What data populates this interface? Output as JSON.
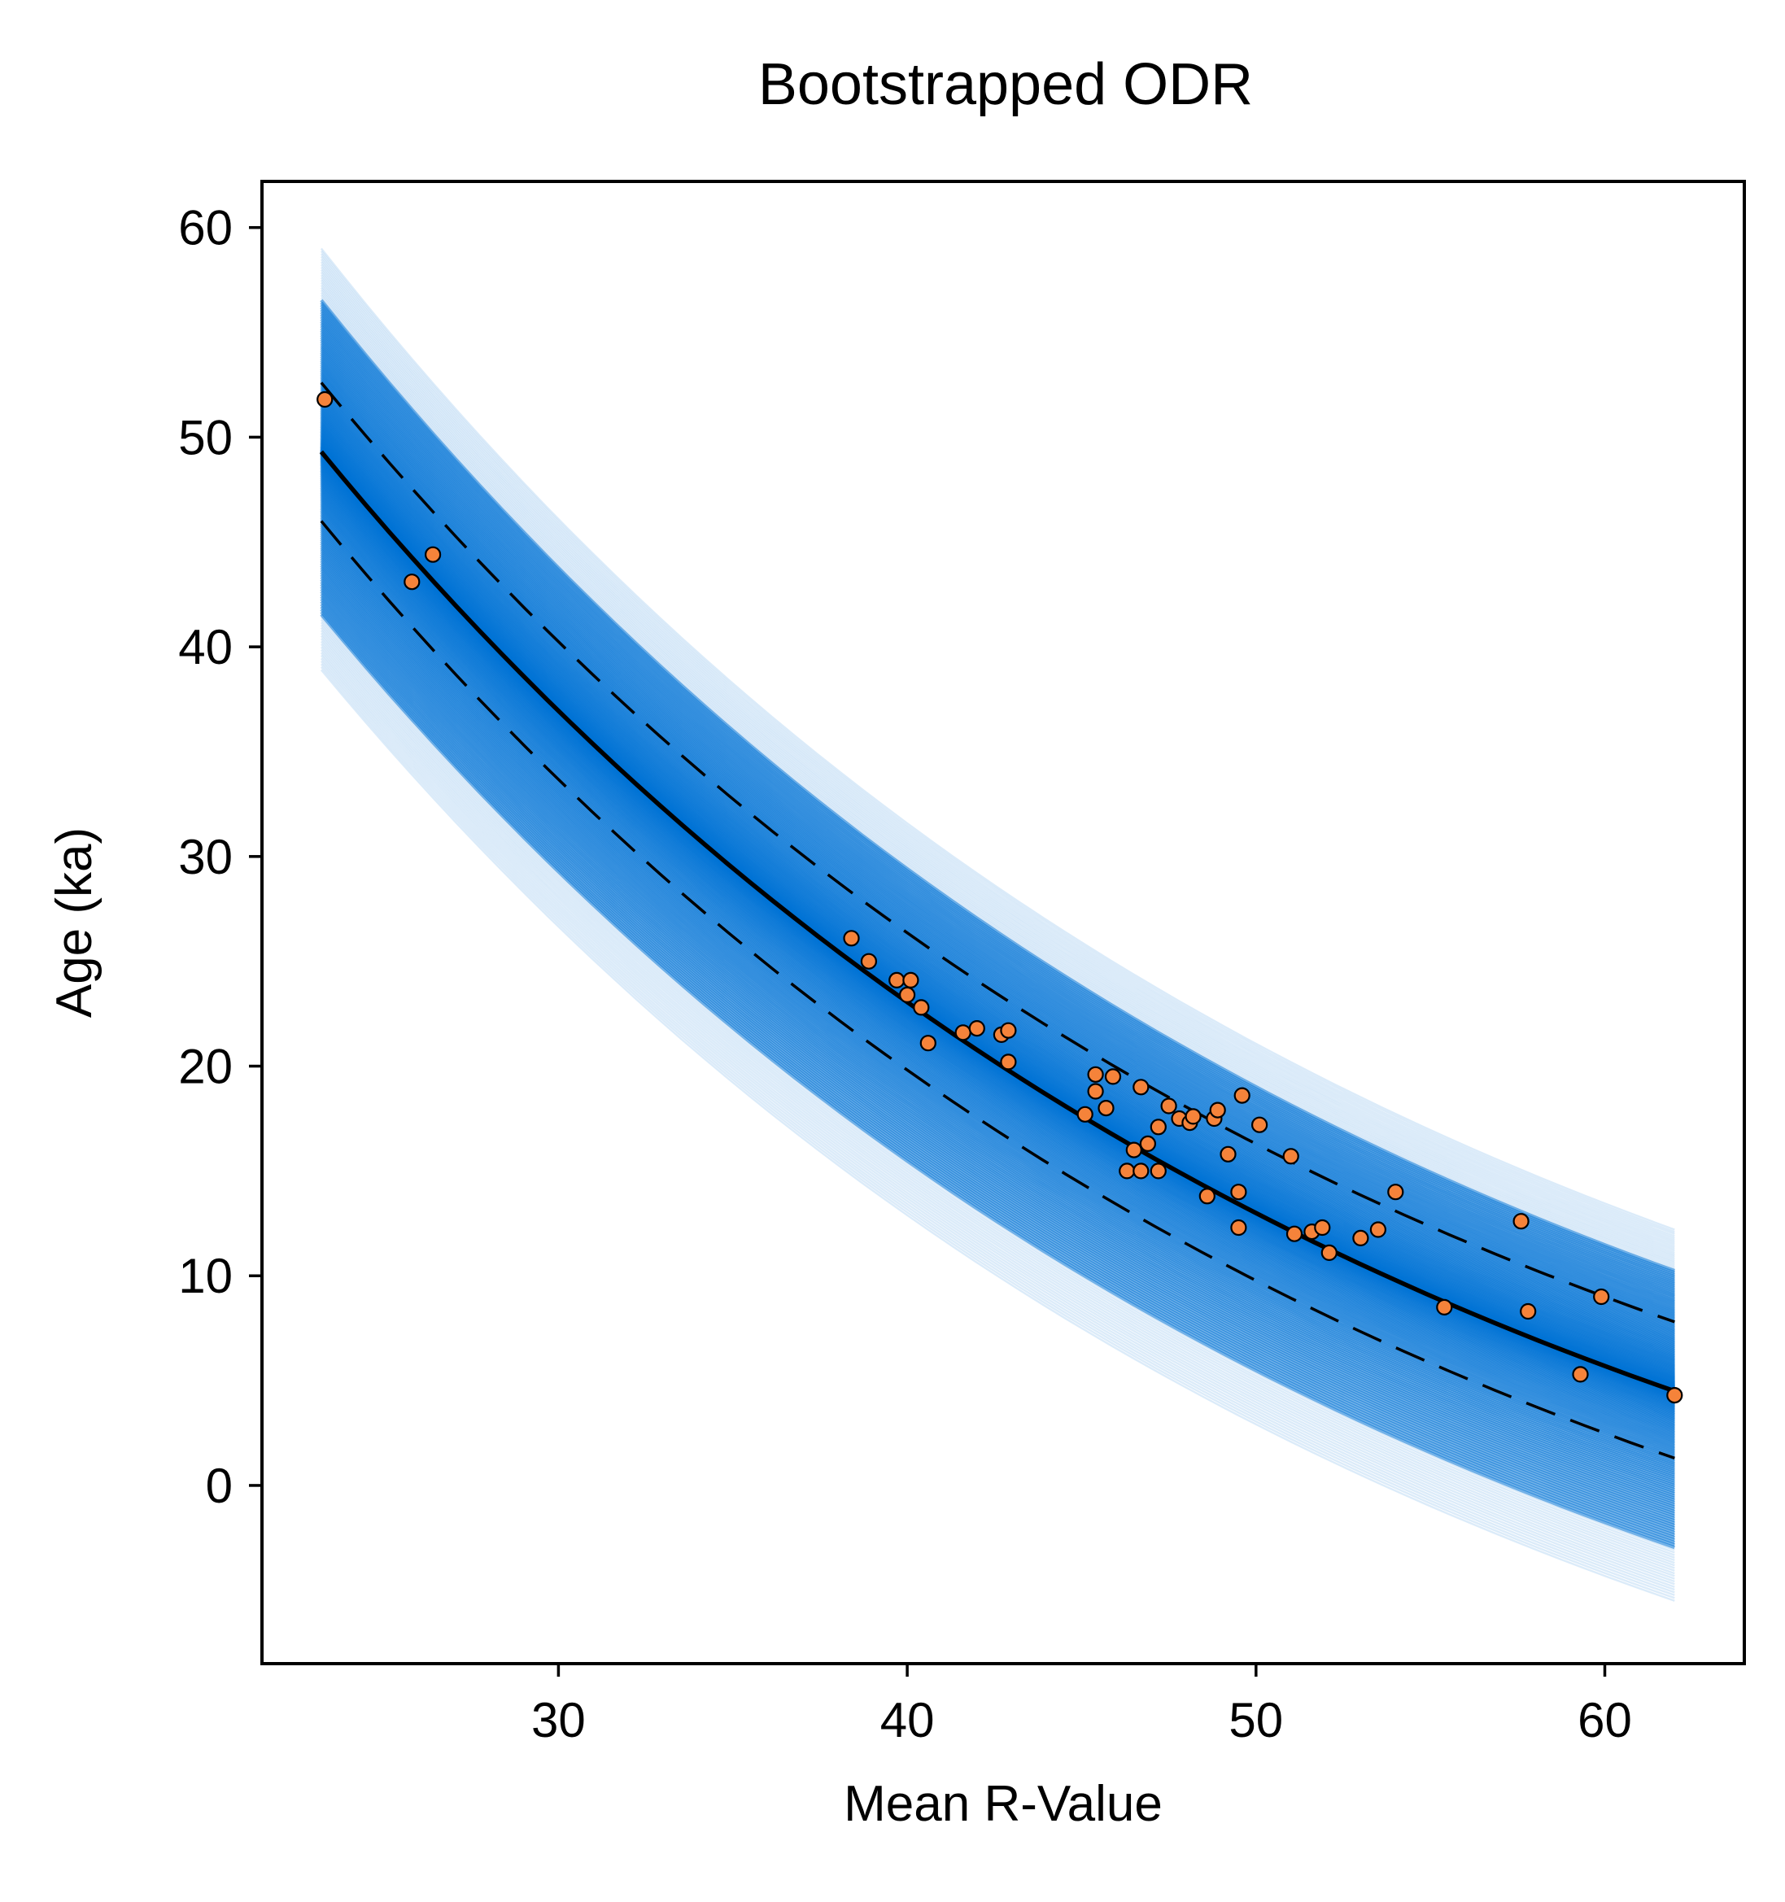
{
  "chart_data": {
    "type": "scatter",
    "title": "Bootstrapped ODR",
    "xlabel": "Mean R-Value",
    "ylabel": "Age (ka)",
    "xlim": [
      21.5,
      64
    ],
    "ylim": [
      -8.5,
      62.2
    ],
    "xticks": [
      30,
      40,
      50,
      60
    ],
    "yticks": [
      0,
      10,
      20,
      30,
      40,
      50,
      60
    ],
    "grid": false,
    "legend": "none",
    "colors": {
      "bootstrap_curves": "#0072d6",
      "points_fill": "#f5833a",
      "points_edge": "#000000",
      "fit_line": "#000000",
      "band_line": "#000000"
    },
    "fit": {
      "x_range": [
        23.2,
        62
      ],
      "best_fit_y_at_ends": [
        49.3,
        4.5
      ],
      "upper_band_y_at_ends": [
        52.6,
        7.8
      ],
      "lower_band_y_at_ends": [
        46.0,
        1.3
      ]
    },
    "bootstrap_envelope": {
      "x_range": [
        23.2,
        62
      ],
      "outer_high_y_at_ends": [
        59.0,
        12.2
      ],
      "outer_low_y_at_ends": [
        38.9,
        -5.5
      ]
    },
    "points": [
      {
        "x": 23.3,
        "y": 51.8
      },
      {
        "x": 25.8,
        "y": 43.1
      },
      {
        "x": 26.4,
        "y": 44.4
      },
      {
        "x": 38.4,
        "y": 26.1
      },
      {
        "x": 38.9,
        "y": 25.0
      },
      {
        "x": 39.7,
        "y": 24.1
      },
      {
        "x": 40.0,
        "y": 23.4
      },
      {
        "x": 40.1,
        "y": 24.1
      },
      {
        "x": 40.4,
        "y": 22.8
      },
      {
        "x": 40.6,
        "y": 21.1
      },
      {
        "x": 41.6,
        "y": 21.6
      },
      {
        "x": 42.0,
        "y": 21.8
      },
      {
        "x": 42.7,
        "y": 21.5
      },
      {
        "x": 42.9,
        "y": 21.7
      },
      {
        "x": 42.9,
        "y": 20.2
      },
      {
        "x": 45.1,
        "y": 17.7
      },
      {
        "x": 45.4,
        "y": 18.8
      },
      {
        "x": 45.4,
        "y": 19.6
      },
      {
        "x": 45.7,
        "y": 18.0
      },
      {
        "x": 45.9,
        "y": 19.5
      },
      {
        "x": 46.3,
        "y": 15.0
      },
      {
        "x": 46.5,
        "y": 16.0
      },
      {
        "x": 46.7,
        "y": 15.0
      },
      {
        "x": 46.7,
        "y": 19.0
      },
      {
        "x": 46.9,
        "y": 16.3
      },
      {
        "x": 47.2,
        "y": 15.0
      },
      {
        "x": 47.2,
        "y": 17.1
      },
      {
        "x": 47.5,
        "y": 18.1
      },
      {
        "x": 47.8,
        "y": 17.5
      },
      {
        "x": 48.1,
        "y": 17.3
      },
      {
        "x": 48.2,
        "y": 17.6
      },
      {
        "x": 48.6,
        "y": 13.8
      },
      {
        "x": 48.8,
        "y": 17.5
      },
      {
        "x": 48.9,
        "y": 17.9
      },
      {
        "x": 49.2,
        "y": 15.8
      },
      {
        "x": 49.5,
        "y": 14.0
      },
      {
        "x": 49.5,
        "y": 12.3
      },
      {
        "x": 49.6,
        "y": 18.6
      },
      {
        "x": 50.1,
        "y": 17.2
      },
      {
        "x": 51.0,
        "y": 15.7
      },
      {
        "x": 51.1,
        "y": 12.0
      },
      {
        "x": 51.6,
        "y": 12.1
      },
      {
        "x": 51.9,
        "y": 12.3
      },
      {
        "x": 52.1,
        "y": 11.1
      },
      {
        "x": 53.0,
        "y": 11.8
      },
      {
        "x": 53.5,
        "y": 12.2
      },
      {
        "x": 54.0,
        "y": 14.0
      },
      {
        "x": 55.4,
        "y": 8.5
      },
      {
        "x": 57.6,
        "y": 12.6
      },
      {
        "x": 57.8,
        "y": 8.3
      },
      {
        "x": 59.3,
        "y": 5.3
      },
      {
        "x": 59.9,
        "y": 9.0
      },
      {
        "x": 62.0,
        "y": 4.3
      }
    ]
  }
}
